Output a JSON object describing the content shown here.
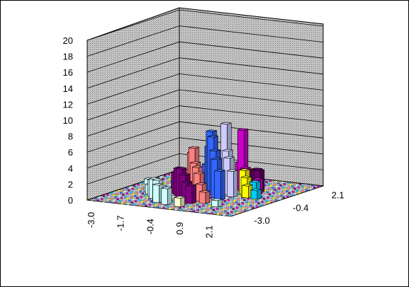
{
  "chart_data": {
    "type": "bar3d",
    "title": "",
    "z_axis": {
      "min": 0,
      "max": 20,
      "step": 2,
      "tick_labels": [
        "0",
        "2",
        "4",
        "6",
        "8",
        "10",
        "12",
        "14",
        "16",
        "18",
        "20"
      ]
    },
    "x_axis": {
      "tick_labels": [
        "-3.0",
        "-1.7",
        "-0.4",
        "0.9",
        "2.1"
      ]
    },
    "y_axis": {
      "tick_labels": [
        "2.1",
        "-0.4",
        "-3.0"
      ]
    },
    "grid": true,
    "series_colors": [
      "#ccffff",
      "#800080",
      "#ff8080",
      "#3366ff",
      "#ccccff",
      "#cc00cc",
      "#ffff00",
      "#00ccff",
      "#ffffcc",
      "#660066"
    ],
    "bars": [
      {
        "x": -2.15,
        "y": -1.05,
        "z": 1.6,
        "color": "#ccffff"
      },
      {
        "x": -1.9,
        "y": -1.35,
        "z": 1.2,
        "color": "#ccffff"
      },
      {
        "x": -1.65,
        "y": -1.6,
        "z": 2.0,
        "color": "#ccffff"
      },
      {
        "x": -1.4,
        "y": -1.9,
        "z": 2.4,
        "color": "#ccffff"
      },
      {
        "x": -1.1,
        "y": -2.15,
        "z": 2.5,
        "color": "#ccffff"
      },
      {
        "x": -0.9,
        "y": -2.45,
        "z": 2.2,
        "color": "#ccffff"
      },
      {
        "x": -0.45,
        "y": -2.6,
        "z": 2.0,
        "color": "#ccffff"
      },
      {
        "x": 0.15,
        "y": -2.7,
        "z": 1.1,
        "color": "#ffffcc"
      },
      {
        "x": 1.3,
        "y": -2.1,
        "z": 0.8,
        "color": "#ccffff"
      },
      {
        "x": -1.35,
        "y": -0.55,
        "z": 2.2,
        "color": "#800080"
      },
      {
        "x": -1.15,
        "y": -0.85,
        "z": 2.6,
        "color": "#800080"
      },
      {
        "x": -0.9,
        "y": -1.1,
        "z": 3.4,
        "color": "#800080"
      },
      {
        "x": -0.65,
        "y": -1.35,
        "z": 3.6,
        "color": "#800080"
      },
      {
        "x": -0.35,
        "y": -1.6,
        "z": 3.1,
        "color": "#800080"
      },
      {
        "x": -0.1,
        "y": -1.85,
        "z": 2.4,
        "color": "#800080"
      },
      {
        "x": 0.2,
        "y": -2.05,
        "z": 2.2,
        "color": "#800080"
      },
      {
        "x": -1.2,
        "y": 0.15,
        "z": 2.3,
        "color": "#ff8080"
      },
      {
        "x": -0.95,
        "y": -0.15,
        "z": 4.7,
        "color": "#ff8080"
      },
      {
        "x": -0.7,
        "y": -0.45,
        "z": 5.6,
        "color": "#ff8080"
      },
      {
        "x": -0.45,
        "y": -0.75,
        "z": 4.0,
        "color": "#ff8080"
      },
      {
        "x": -0.2,
        "y": -1.0,
        "z": 3.7,
        "color": "#ff8080"
      },
      {
        "x": 0.05,
        "y": -1.3,
        "z": 3.2,
        "color": "#ff8080"
      },
      {
        "x": 0.3,
        "y": -1.55,
        "z": 2.1,
        "color": "#ff8080"
      },
      {
        "x": 0.6,
        "y": -1.8,
        "z": 1.4,
        "color": "#ff8080"
      },
      {
        "x": -0.85,
        "y": 0.65,
        "z": 2.8,
        "color": "#3366ff"
      },
      {
        "x": -0.55,
        "y": 0.35,
        "z": 5.3,
        "color": "#3366ff"
      },
      {
        "x": -0.3,
        "y": 0.05,
        "z": 7.5,
        "color": "#3366ff"
      },
      {
        "x": -0.05,
        "y": -0.25,
        "z": 7.1,
        "color": "#3366ff"
      },
      {
        "x": 0.2,
        "y": -0.5,
        "z": 5.6,
        "color": "#3366ff"
      },
      {
        "x": 0.45,
        "y": -0.8,
        "z": 4.8,
        "color": "#3366ff"
      },
      {
        "x": 0.75,
        "y": -1.05,
        "z": 3.6,
        "color": "#3366ff"
      },
      {
        "x": -0.2,
        "y": 0.75,
        "z": 4.6,
        "color": "#ccccff"
      },
      {
        "x": 0.05,
        "y": 0.45,
        "z": 8.3,
        "color": "#ccccff"
      },
      {
        "x": 0.3,
        "y": 0.15,
        "z": 5.2,
        "color": "#ccccff"
      },
      {
        "x": 0.55,
        "y": -0.15,
        "z": 4.6,
        "color": "#ccccff"
      },
      {
        "x": 0.85,
        "y": -0.4,
        "z": 3.2,
        "color": "#ccccff"
      },
      {
        "x": 0.3,
        "y": 1.0,
        "z": 3.2,
        "color": "#cc00cc"
      },
      {
        "x": 0.55,
        "y": 0.75,
        "z": 7.5,
        "color": "#cc00cc"
      },
      {
        "x": 0.85,
        "y": 0.45,
        "z": 3.0,
        "color": "#cc00cc"
      },
      {
        "x": 1.05,
        "y": 0.2,
        "z": 2.0,
        "color": "#cc00cc"
      },
      {
        "x": 0.75,
        "y": 1.2,
        "z": 2.3,
        "color": "#660066"
      },
      {
        "x": 1.0,
        "y": 0.95,
        "z": 2.6,
        "color": "#660066"
      },
      {
        "x": 1.25,
        "y": 0.7,
        "z": 2.7,
        "color": "#660066"
      },
      {
        "x": 1.0,
        "y": 0.15,
        "z": 3.0,
        "color": "#ffff00"
      },
      {
        "x": 1.2,
        "y": -0.05,
        "z": 2.3,
        "color": "#ffff00"
      },
      {
        "x": 1.4,
        "y": -0.3,
        "z": 1.5,
        "color": "#ffff00"
      },
      {
        "x": 1.6,
        "y": -0.1,
        "z": 1.9,
        "color": "#00ccff"
      },
      {
        "x": 1.8,
        "y": -0.35,
        "z": 1.1,
        "color": "#00ccff"
      },
      {
        "x": 1.35,
        "y": 0.45,
        "z": 1.8,
        "color": "#cc00cc"
      }
    ]
  }
}
